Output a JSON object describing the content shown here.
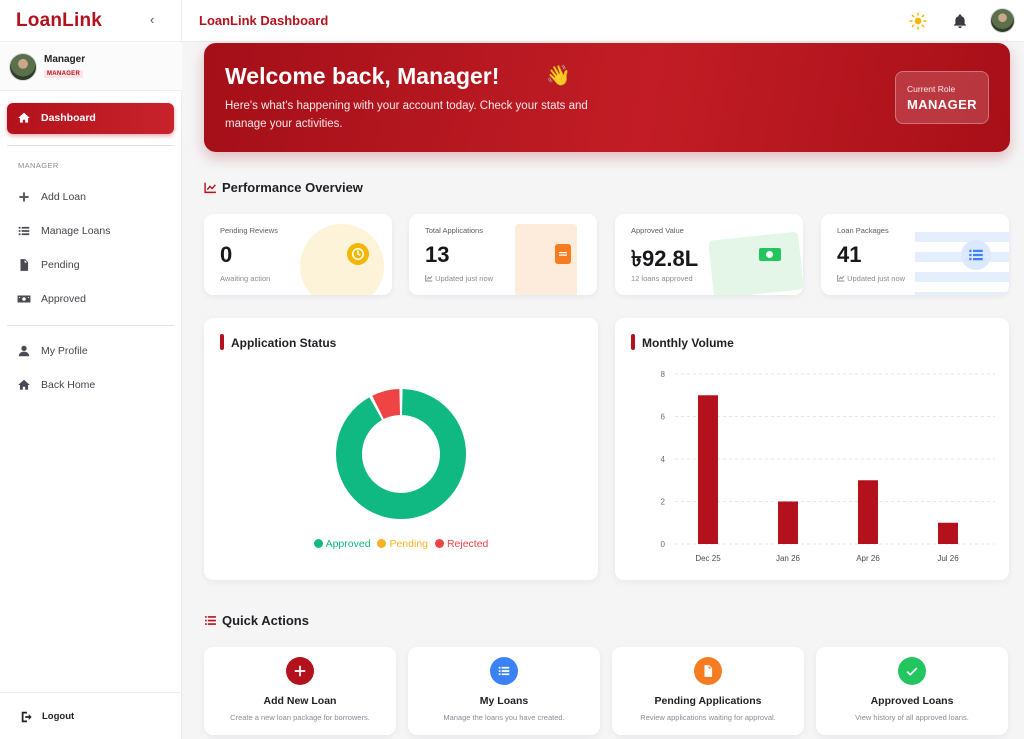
{
  "sidebar": {
    "brand": "LoanLink",
    "collapse_icon": "chevron-left-icon",
    "user": {
      "name": "Manager",
      "role": "MANAGER"
    },
    "active_item": {
      "label": "Dashboard",
      "icon": "home-icon"
    },
    "section_heading": "MANAGER",
    "items": [
      {
        "label": "Add Loan",
        "icon": "plus-icon"
      },
      {
        "label": "Manage Loans",
        "icon": "list-icon"
      },
      {
        "label": "Pending",
        "icon": "file-icon"
      },
      {
        "label": "Approved",
        "icon": "money-icon"
      }
    ],
    "account_items": [
      {
        "label": "My Profile",
        "icon": "user-icon"
      },
      {
        "label": "Back Home",
        "icon": "home-icon"
      }
    ],
    "logout_label": "Logout"
  },
  "topbar": {
    "title": "LoanLink Dashboard",
    "icons": [
      "sun-icon",
      "bell-icon",
      "avatar"
    ]
  },
  "hero": {
    "title": "Welcome back, Manager!",
    "emoji": "👋",
    "subtitle": "Here's what's happening with your account today. Check your stats and manage your activities.",
    "role_caption": "Current Role",
    "role_value": "MANAGER"
  },
  "performance": {
    "heading": "Performance Overview",
    "cards": [
      {
        "label": "Pending Reviews",
        "value": "0",
        "note": "Awaiting action",
        "accent": "#f2b705"
      },
      {
        "label": "Total Applications",
        "value": "13",
        "note": "Updated just now",
        "accent": "#f57c20"
      },
      {
        "label": "Approved Value",
        "value": "৳92.8L",
        "note": "12 loans approved",
        "accent": "#22c55e"
      },
      {
        "label": "Loan Packages",
        "value": "41",
        "note": "Updated just now",
        "accent": "#3b82f6"
      }
    ]
  },
  "application_status": {
    "title": "Application Status",
    "legend": [
      "Approved",
      "Pending",
      "Rejected"
    ]
  },
  "monthly_volume": {
    "title": "Monthly Volume"
  },
  "chart_data": [
    {
      "type": "pie",
      "title": "Application Status",
      "categories": [
        "Approved",
        "Pending",
        "Rejected"
      ],
      "values": [
        12,
        0,
        1
      ],
      "colors": [
        "#10b981",
        "#f5b324",
        "#ef4444"
      ],
      "donut": true,
      "legend": "bottom"
    },
    {
      "type": "bar",
      "title": "Monthly Volume",
      "categories": [
        "Dec 25",
        "Jan 26",
        "Apr 26",
        "Jul 26"
      ],
      "values": [
        7,
        2,
        3,
        1
      ],
      "ylim": [
        0,
        8
      ],
      "yticks": [
        0,
        2,
        4,
        6,
        8
      ],
      "color": "#b3121c",
      "grid": true
    }
  ],
  "quick_actions": {
    "heading": "Quick Actions",
    "items": [
      {
        "title": "Add New Loan",
        "desc": "Create a new loan package for borrowers.",
        "color": "#b3121c",
        "icon": "plus-icon"
      },
      {
        "title": "My Loans",
        "desc": "Manage the loans you have created.",
        "color": "#3b82f6",
        "icon": "list-icon"
      },
      {
        "title": "Pending Applications",
        "desc": "Review applications waiting for approval.",
        "color": "#f57c20",
        "icon": "file-icon"
      },
      {
        "title": "Approved Loans",
        "desc": "View history of all approved loans.",
        "color": "#22c55e",
        "icon": "check-icon"
      }
    ]
  }
}
